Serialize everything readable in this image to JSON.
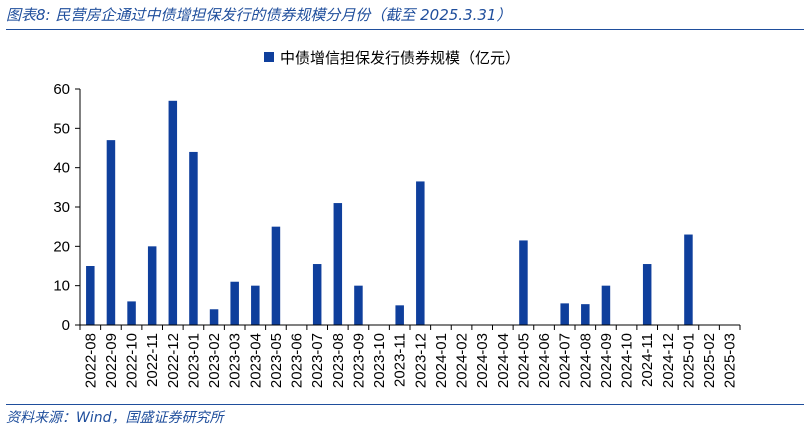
{
  "header": {
    "title": "图表8:  民营房企通过中债增担保发行的债券规模分月份（截至 2025.3.31）"
  },
  "footer": {
    "source": "资料来源：Wind，国盛证券研究所"
  },
  "chart_data": {
    "type": "bar",
    "title": "",
    "xlabel": "",
    "ylabel": "",
    "ylim": [
      0,
      60
    ],
    "yticks": [
      0,
      10,
      20,
      30,
      40,
      50,
      60
    ],
    "grid": false,
    "legend_position": "top-center",
    "bar_color": "#0f3f9c",
    "categories": [
      "2022-08",
      "2022-09",
      "2022-10",
      "2022-11",
      "2022-12",
      "2023-01",
      "2023-02",
      "2023-03",
      "2023-04",
      "2023-05",
      "2023-06",
      "2023-07",
      "2023-08",
      "2023-09",
      "2023-10",
      "2023-11",
      "2023-12",
      "2024-01",
      "2024-02",
      "2024-03",
      "2024-04",
      "2024-05",
      "2024-06",
      "2024-07",
      "2024-08",
      "2024-09",
      "2024-10",
      "2024-11",
      "2024-12",
      "2025-01",
      "2025-02",
      "2025-03"
    ],
    "series": [
      {
        "name": "中债增信担保发行债券规模（亿元）",
        "values": [
          15,
          47,
          6,
          20,
          57,
          44,
          4,
          11,
          10,
          25,
          0,
          15.5,
          31,
          10,
          0,
          5,
          36.5,
          0,
          0,
          0,
          0,
          21.5,
          0,
          5.5,
          5.3,
          10,
          0,
          15.5,
          0,
          23,
          0,
          0
        ]
      }
    ]
  }
}
